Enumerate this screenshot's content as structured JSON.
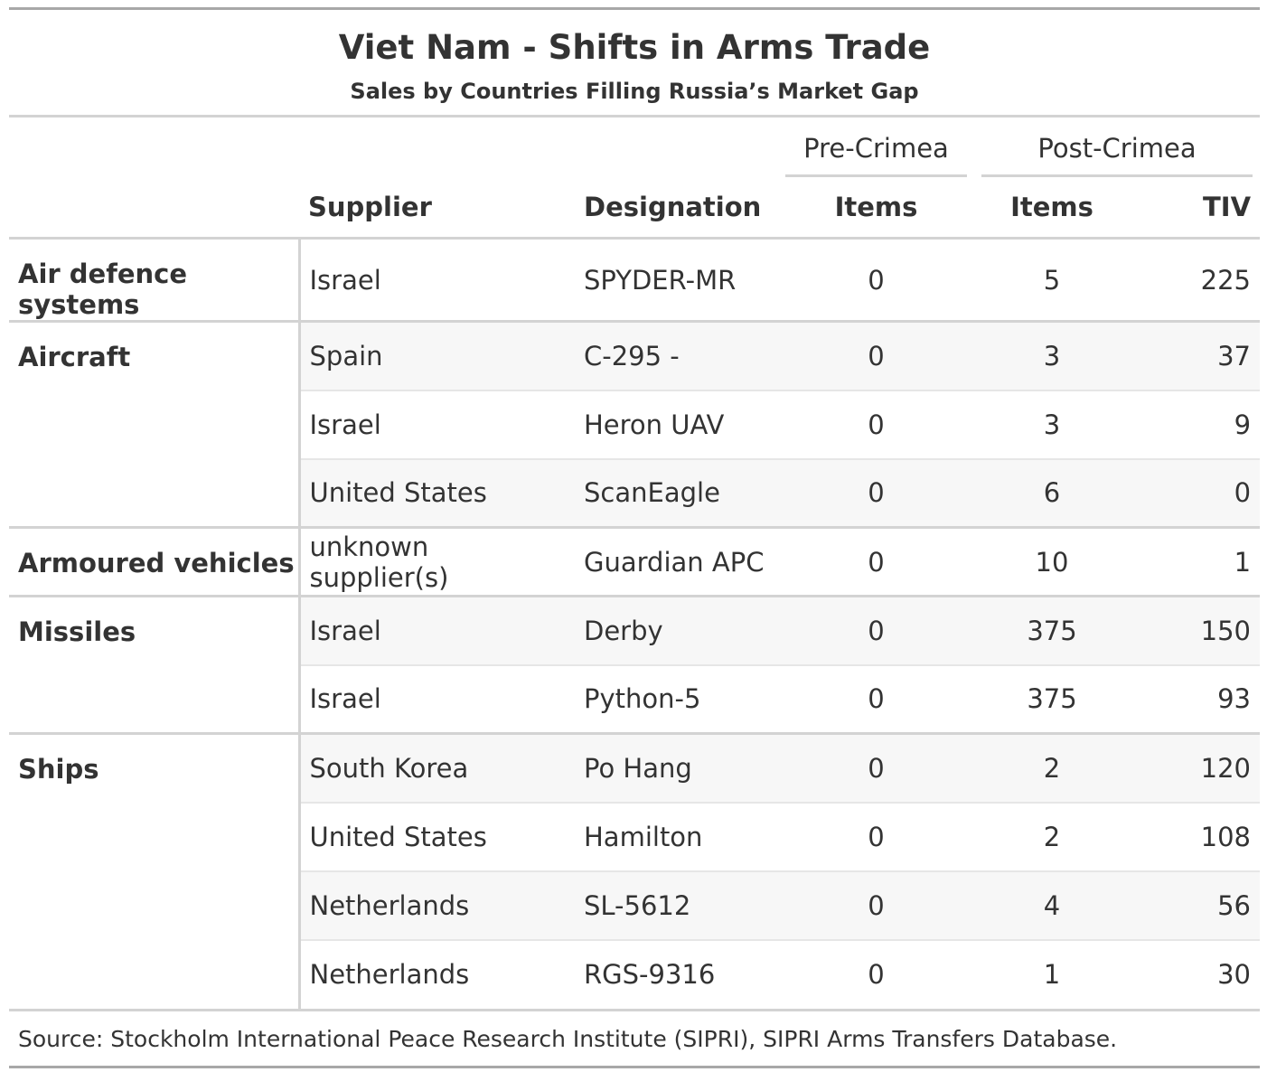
{
  "chart_data": {
    "type": "table",
    "title": "Viet Nam - Shifts in Arms Trade",
    "subtitle": "Sales by Countries Filling Russia’s Market Gap",
    "spanners": {
      "pre": "Pre-Crimea",
      "post": "Post-Crimea"
    },
    "columns": {
      "supplier": "Supplier",
      "designation": "Designation",
      "pre_items": "Items",
      "post_items": "Items",
      "tiv": "TIV"
    },
    "groups": [
      {
        "label": "Air defence systems",
        "rows": [
          {
            "supplier": "Israel",
            "designation": "SPYDER-MR",
            "pre_items": "0",
            "post_items": "5",
            "tiv": "225"
          }
        ]
      },
      {
        "label": "Aircraft",
        "rows": [
          {
            "supplier": "Spain",
            "designation": "C-295 -",
            "pre_items": "0",
            "post_items": "3",
            "tiv": "37"
          },
          {
            "supplier": "Israel",
            "designation": "Heron UAV",
            "pre_items": "0",
            "post_items": "3",
            "tiv": "9"
          },
          {
            "supplier": "United States",
            "designation": "ScanEagle",
            "pre_items": "0",
            "post_items": "6",
            "tiv": "0"
          }
        ]
      },
      {
        "label": "Armoured vehicles",
        "rows": [
          {
            "supplier": "unknown supplier(s)",
            "designation": "Guardian APC",
            "pre_items": "0",
            "post_items": "10",
            "tiv": "1"
          }
        ]
      },
      {
        "label": "Missiles",
        "rows": [
          {
            "supplier": "Israel",
            "designation": "Derby",
            "pre_items": "0",
            "post_items": "375",
            "tiv": "150"
          },
          {
            "supplier": "Israel",
            "designation": "Python-5",
            "pre_items": "0",
            "post_items": "375",
            "tiv": "93"
          }
        ]
      },
      {
        "label": "Ships",
        "rows": [
          {
            "supplier": "South Korea",
            "designation": "Po Hang",
            "pre_items": "0",
            "post_items": "2",
            "tiv": "120"
          },
          {
            "supplier": "United States",
            "designation": "Hamilton",
            "pre_items": "0",
            "post_items": "2",
            "tiv": "108"
          },
          {
            "supplier": "Netherlands",
            "designation": "SL-5612",
            "pre_items": "0",
            "post_items": "4",
            "tiv": "56"
          },
          {
            "supplier": "Netherlands",
            "designation": "RGS-9316",
            "pre_items": "0",
            "post_items": "1",
            "tiv": "30"
          }
        ]
      }
    ],
    "source_note": "Source: Stockholm International Peace Research Institute (SIPRI), SIPRI Arms Transfers Database."
  }
}
